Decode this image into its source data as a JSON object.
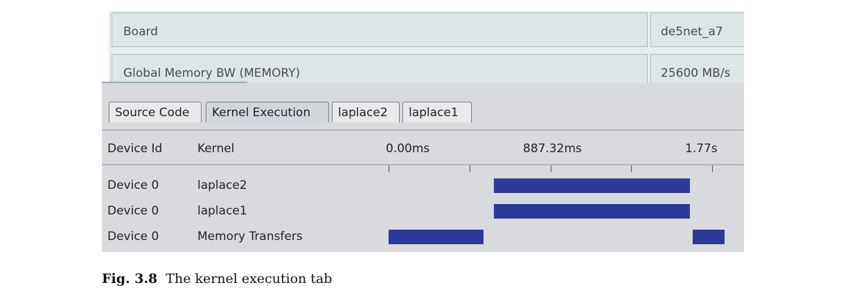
{
  "properties": [
    {
      "label": "Board",
      "value": "de5net_a7"
    },
    {
      "label": "Global Memory BW (MEMORY)",
      "value": "25600 MB/s"
    }
  ],
  "tabs": [
    {
      "label": "Source Code",
      "active": false
    },
    {
      "label": "Kernel Execution",
      "active": true
    },
    {
      "label": "laplace2",
      "active": false
    },
    {
      "label": "laplace1",
      "active": false
    }
  ],
  "table": {
    "headers": {
      "device": "Device Id",
      "kernel": "Kernel"
    },
    "time_labels": [
      "0.00ms",
      "887.32ms",
      "1.77s"
    ],
    "rows": [
      {
        "device": "Device 0",
        "kernel": "laplace2",
        "bars": [
          {
            "start_ms": 575,
            "end_ms": 1650
          }
        ]
      },
      {
        "device": "Device 0",
        "kernel": "laplace1",
        "bars": [
          {
            "start_ms": 575,
            "end_ms": 1650
          }
        ]
      },
      {
        "device": "Device 0",
        "kernel": "Memory Transfers",
        "bars": [
          {
            "start_ms": 0,
            "end_ms": 520
          },
          {
            "start_ms": 1665,
            "end_ms": 1840
          }
        ]
      }
    ],
    "bar_color": "#2b3a99"
  },
  "caption": {
    "label": "Fig. 3.8",
    "text": "The kernel execution tab"
  }
}
